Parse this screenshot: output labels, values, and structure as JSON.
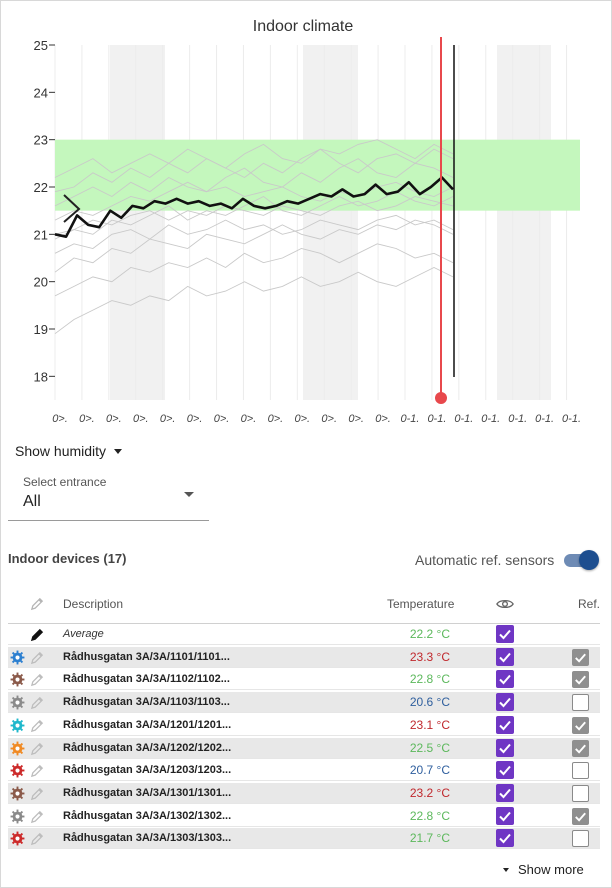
{
  "chart_data": {
    "type": "line",
    "title": "Indoor climate",
    "ylim": [
      17.5,
      25
    ],
    "yticks": [
      18,
      19,
      20,
      21,
      22,
      23,
      24,
      25
    ],
    "xtick_labels": [
      "0>.",
      "0>.",
      "0>.",
      "0>.",
      "0>.",
      "0>.",
      "0>.",
      "0>.",
      "0>.",
      "0>.",
      "0>.",
      "0>.",
      "0>.",
      "0-1.",
      "0-1.",
      "0-1.",
      "0-1.",
      "0-1.",
      "0-1.",
      "0-1."
    ],
    "comfort_band": [
      21.5,
      23
    ],
    "shaded_column_ranges": [
      [
        110,
        165
      ],
      [
        303,
        358
      ],
      [
        497,
        551
      ]
    ],
    "marker_value": 17.5,
    "average_series": [
      21.0,
      20.95,
      21.4,
      21.2,
      21.15,
      21.5,
      21.35,
      21.6,
      21.55,
      21.7,
      21.65,
      21.75,
      21.65,
      21.7,
      21.6,
      21.65,
      21.55,
      21.75,
      21.6,
      21.55,
      21.6,
      21.7,
      21.65,
      21.75,
      21.85,
      21.8,
      21.95,
      21.8,
      21.85,
      22.05,
      21.85,
      21.9,
      22.1,
      21.85,
      22.0,
      22.2,
      21.95
    ],
    "grey_series": [
      [
        21.3,
        21.5,
        21.4,
        21.6,
        21.8,
        21.7,
        21.9,
        22.1,
        21.9,
        22.0,
        21.8,
        21.9,
        22.0,
        21.8,
        21.7,
        21.9,
        21.8,
        22.0,
        22.1,
        21.9,
        21.8,
        22.0
      ],
      [
        21.0,
        21.1,
        21.3,
        21.2,
        21.4,
        21.5,
        21.3,
        21.5,
        21.4,
        21.6,
        21.5,
        21.4,
        21.6,
        21.5,
        21.4,
        21.6,
        21.7,
        21.5,
        21.6,
        21.8,
        21.7,
        21.6
      ],
      [
        20.6,
        20.8,
        20.7,
        21.0,
        21.1,
        20.9,
        21.2,
        21.0,
        21.1,
        21.3,
        21.1,
        21.2,
        21.0,
        21.1,
        21.3,
        21.2,
        21.1,
        21.3,
        21.4,
        21.2,
        21.3,
        21.1
      ],
      [
        22.2,
        22.4,
        22.6,
        22.3,
        22.5,
        22.7,
        22.5,
        22.8,
        22.6,
        22.4,
        22.7,
        22.9,
        22.6,
        22.5,
        22.8,
        22.7,
        22.9,
        23.0,
        22.8,
        22.6,
        22.9,
        22.7
      ],
      [
        21.9,
        22.0,
        22.3,
        22.1,
        22.4,
        22.2,
        22.5,
        22.3,
        22.6,
        22.4,
        22.2,
        22.5,
        22.3,
        22.6,
        22.8,
        22.5,
        22.3,
        22.6,
        22.7,
        22.5,
        22.8,
        22.6
      ],
      [
        20.2,
        20.5,
        20.4,
        20.7,
        20.6,
        20.9,
        20.8,
        20.7,
        21.0,
        20.9,
        20.8,
        21.0,
        21.2,
        21.0,
        20.9,
        21.1,
        21.0,
        21.2,
        21.1,
        21.3,
        21.2,
        21.0
      ],
      [
        19.7,
        19.9,
        20.1,
        20.0,
        20.3,
        20.2,
        20.4,
        20.3,
        20.5,
        20.3,
        20.6,
        20.4,
        20.5,
        20.7,
        20.6,
        20.4,
        20.6,
        20.8,
        20.7,
        20.5,
        20.6,
        20.4
      ],
      [
        18.9,
        19.2,
        19.4,
        19.6,
        19.5,
        19.7,
        19.6,
        19.9,
        19.7,
        19.8,
        20.0,
        19.8,
        19.9,
        20.1,
        19.9,
        20.0,
        20.2,
        20.0,
        19.9,
        20.1,
        20.3,
        20.1
      ],
      [
        20.9,
        21.1,
        21.0,
        21.3,
        21.2,
        21.4,
        21.6,
        21.3,
        21.5,
        21.4,
        21.6,
        21.8,
        21.5,
        21.4,
        21.6,
        21.8,
        21.6,
        21.7,
        21.9,
        21.7,
        21.6,
        21.8
      ],
      [
        21.6,
        21.8,
        22.0,
        21.8,
        22.1,
        21.9,
        22.2,
        22.0,
        21.9,
        22.2,
        22.4,
        22.1,
        22.0,
        22.3,
        22.1,
        22.4,
        22.6,
        22.3,
        22.2,
        22.5,
        22.4,
        22.2
      ]
    ]
  },
  "controls": {
    "humidity_label": "Show humidity",
    "entrance_label": "Select entrance",
    "entrance_value": "All"
  },
  "devices": {
    "title": "Indoor devices (17)",
    "auto_ref_label": "Automatic ref. sensors",
    "auto_ref_on": true,
    "columns": {
      "description": "Description",
      "temperature": "Temperature",
      "ref": "Ref."
    },
    "rows": [
      {
        "gear": "",
        "name": "Average",
        "temp": "22.2 °C",
        "temp_color": "#5cb85c",
        "visible": true,
        "ref": null,
        "average": true
      },
      {
        "gear": "#2c7fd0",
        "name": "Rådhusgatan 3A/3A/1101/1101...",
        "temp": "23.3 °C",
        "temp_color": "#c0282d",
        "visible": true,
        "ref": true
      },
      {
        "gear": "#8b5a4a",
        "name": "Rådhusgatan 3A/3A/1102/1102...",
        "temp": "22.8 °C",
        "temp_color": "#5cb85c",
        "visible": true,
        "ref": true
      },
      {
        "gear": "#8a8a8a",
        "name": "Rådhusgatan 3A/3A/1103/1103...",
        "temp": "20.6 °C",
        "temp_color": "#2f5f9e",
        "visible": true,
        "ref": false
      },
      {
        "gear": "#1fb8cc",
        "name": "Rådhusgatan 3A/3A/1201/1201...",
        "temp": "23.1 °C",
        "temp_color": "#c0282d",
        "visible": true,
        "ref": true
      },
      {
        "gear": "#f08a24",
        "name": "Rådhusgatan 3A/3A/1202/1202...",
        "temp": "22.5 °C",
        "temp_color": "#5cb85c",
        "visible": true,
        "ref": true
      },
      {
        "gear": "#cc2a2a",
        "name": "Rådhusgatan 3A/3A/1203/1203...",
        "temp": "20.7 °C",
        "temp_color": "#2f5f9e",
        "visible": true,
        "ref": false
      },
      {
        "gear": "#8b5a4a",
        "name": "Rådhusgatan 3A/3A/1301/1301...",
        "temp": "23.2 °C",
        "temp_color": "#c0282d",
        "visible": true,
        "ref": false
      },
      {
        "gear": "#8a8a8a",
        "name": "Rådhusgatan 3A/3A/1302/1302...",
        "temp": "22.8 °C",
        "temp_color": "#5cb85c",
        "visible": true,
        "ref": true
      },
      {
        "gear": "#cc2a2a",
        "name": "Rådhusgatan 3A/3A/1303/1303...",
        "temp": "21.7 °C",
        "temp_color": "#5cb85c",
        "visible": true,
        "ref": false
      }
    ],
    "show_more_label": "Show more"
  }
}
